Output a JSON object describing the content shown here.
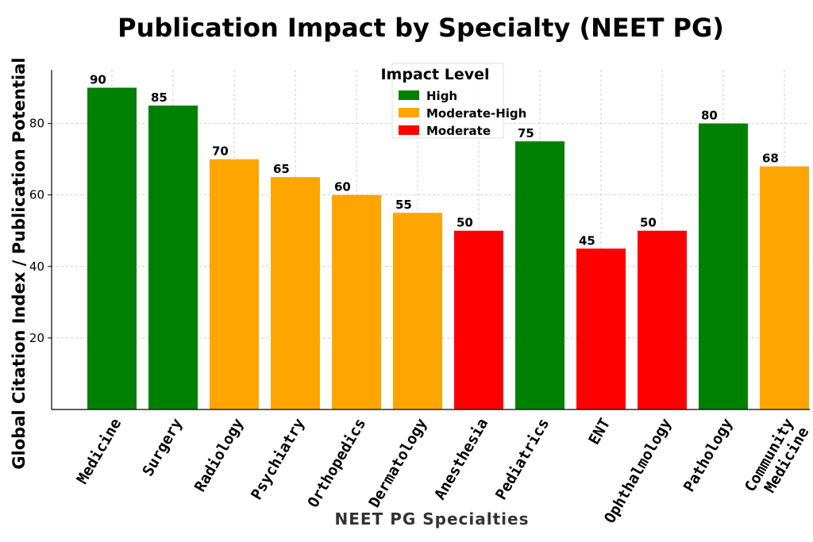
{
  "chart_data": {
    "type": "bar",
    "title": "Publication Impact by Specialty (NEET PG)",
    "xlabel": "NEET PG Specialties",
    "ylabel": "Global Citation Index / Publication Potential",
    "ylim": [
      0,
      95
    ],
    "yticks": [
      20,
      40,
      60,
      80
    ],
    "grid": true,
    "legend_position": "top-center",
    "legend": {
      "title": "Impact Level",
      "entries": [
        {
          "label": "High",
          "color": "#008000"
        },
        {
          "label": "Moderate-High",
          "color": "#FFA500"
        },
        {
          "label": "Moderate",
          "color": "#FF0000"
        }
      ]
    },
    "categories": [
      "Medicine",
      "Surgery",
      "Radiology",
      "Psychiatry",
      "Orthopedics",
      "Dermatology",
      "Anesthesia",
      "Pediatrics",
      "ENT",
      "Ophthalmology",
      "Pathology",
      "Community\nMedicine"
    ],
    "values": [
      90,
      85,
      70,
      65,
      60,
      55,
      50,
      75,
      45,
      50,
      80,
      68
    ],
    "value_labels": [
      "90",
      "85",
      "70",
      "65",
      "60",
      "55",
      "50",
      "75",
      "45",
      "50",
      "80",
      "68"
    ],
    "impact_levels": [
      "High",
      "High",
      "Moderate-High",
      "Moderate-High",
      "Moderate-High",
      "Moderate-High",
      "Moderate",
      "High",
      "Moderate",
      "Moderate",
      "High",
      "Moderate-High"
    ]
  }
}
